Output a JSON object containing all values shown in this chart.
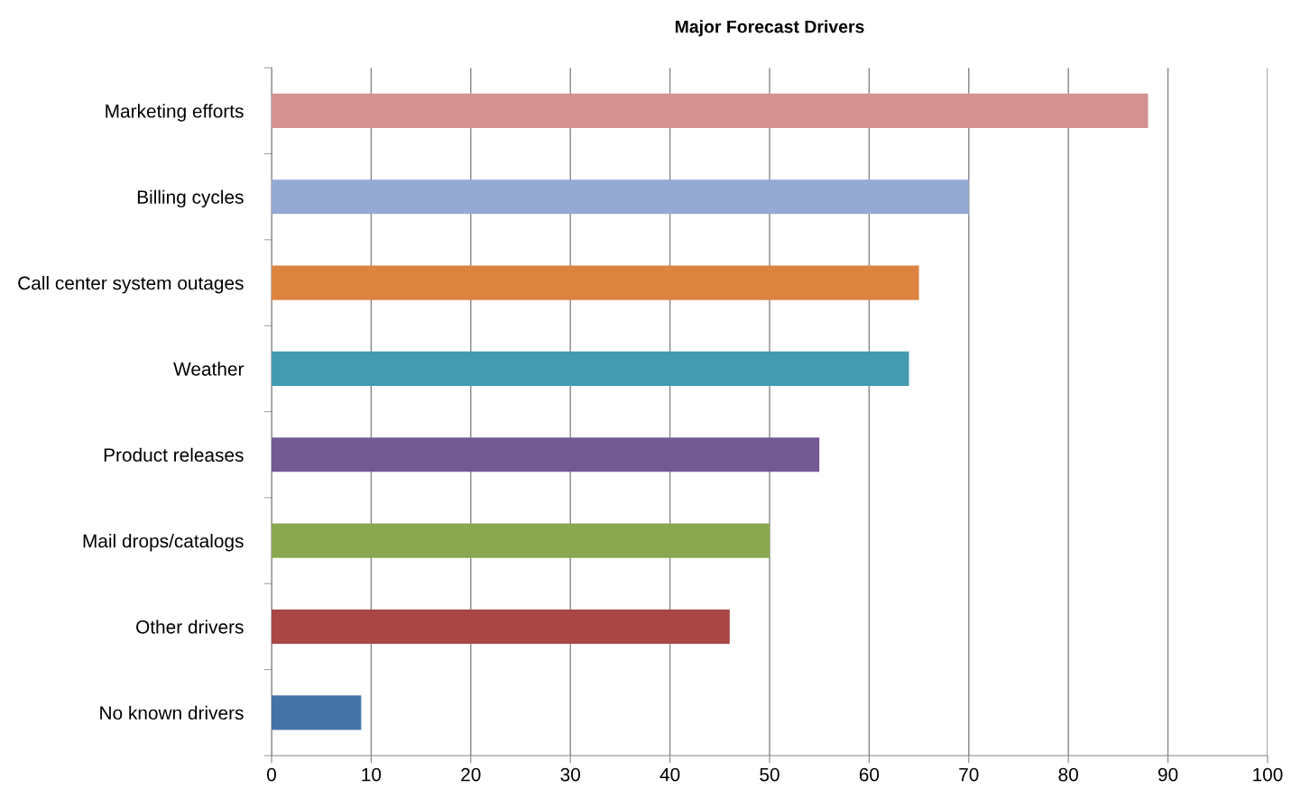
{
  "chart_data": {
    "type": "bar",
    "orientation": "horizontal",
    "title": "Major Forecast Drivers",
    "categories": [
      "Marketing efforts",
      "Billing cycles",
      "Call center system outages",
      "Weather",
      "Product releases",
      "Mail drops/catalogs",
      "Other drivers",
      "No known drivers"
    ],
    "values": [
      88,
      70,
      65,
      64,
      55,
      50,
      46,
      9
    ],
    "colors": [
      "#d39191",
      "#94aad2",
      "#dc843f",
      "#439bb2",
      "#735a93",
      "#8aa84f",
      "#a94744",
      "#4473a8"
    ],
    "xlim": [
      0,
      100
    ],
    "xticks": [
      0,
      10,
      20,
      30,
      40,
      50,
      60,
      70,
      80,
      90,
      100
    ],
    "grid": "x",
    "legend": false
  }
}
